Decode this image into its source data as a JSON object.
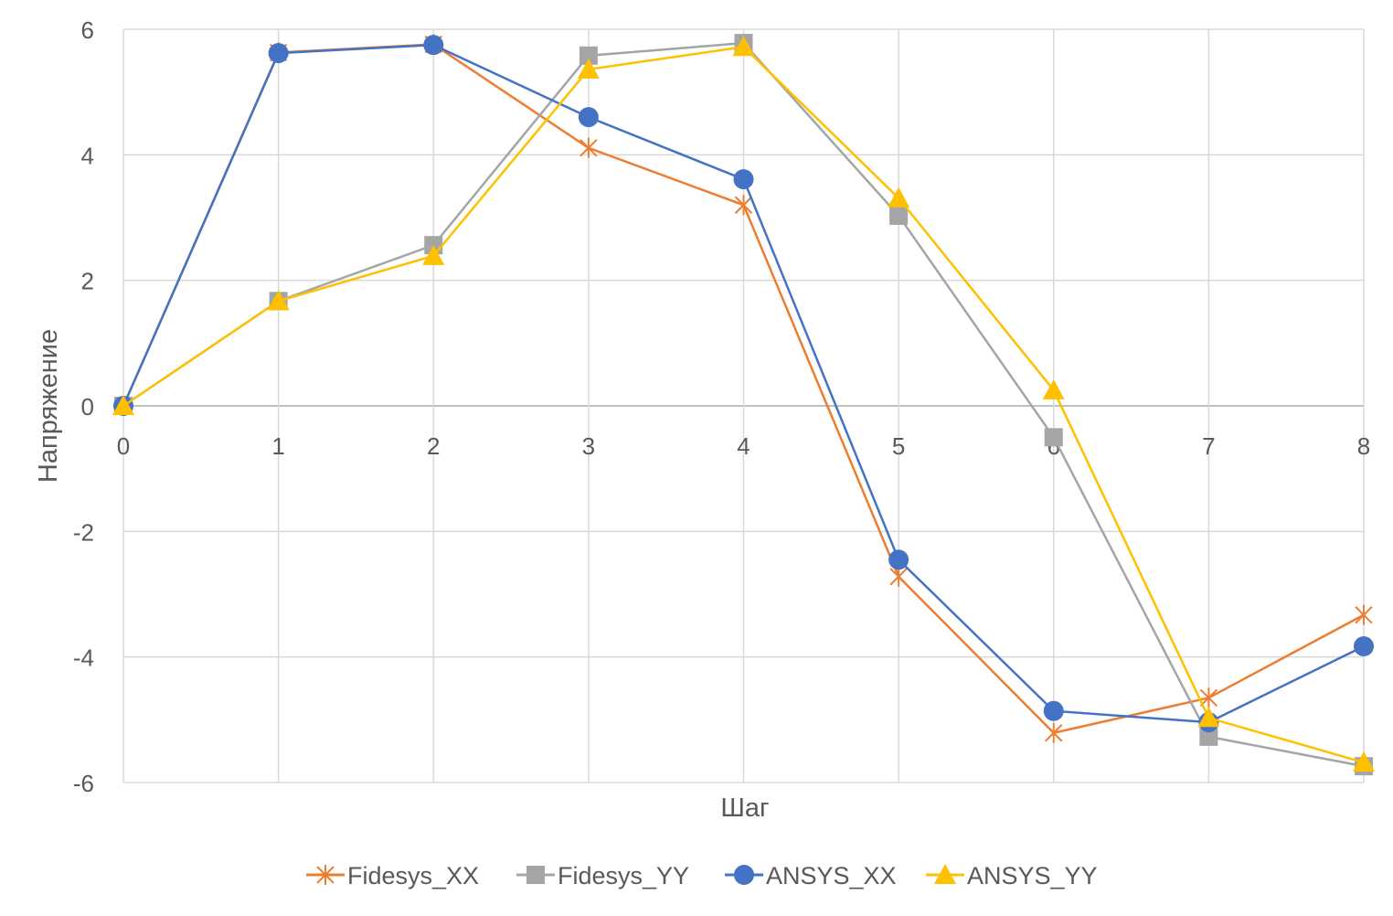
{
  "chart_data": {
    "type": "line",
    "title": "",
    "xlabel": "Шаг",
    "ylabel": "Напряжение",
    "x": [
      0,
      1,
      2,
      3,
      4,
      5,
      6,
      7,
      8
    ],
    "xlim": [
      0,
      8
    ],
    "ylim": [
      -6,
      6
    ],
    "yticks": [
      -6,
      -4,
      -2,
      0,
      2,
      4,
      6
    ],
    "xticks": [
      0,
      1,
      2,
      3,
      4,
      5,
      6,
      7,
      8
    ],
    "grid": true,
    "legend_position": "bottom",
    "series": [
      {
        "name": "Fidesys_XX",
        "color": "#ED7D31",
        "marker": "star",
        "values": [
          0,
          5.63,
          5.76,
          4.11,
          3.2,
          -2.72,
          -5.21,
          -4.65,
          -3.33
        ]
      },
      {
        "name": "Fidesys_YY",
        "color": "#A5A5A5",
        "marker": "square",
        "values": [
          0,
          1.67,
          2.56,
          5.58,
          5.78,
          3.03,
          -0.5,
          -5.27,
          -5.74
        ]
      },
      {
        "name": "ANSYS_XX",
        "color": "#4472C4",
        "marker": "circle",
        "values": [
          0,
          5.62,
          5.75,
          4.6,
          3.61,
          -2.45,
          -4.86,
          -5.04,
          -3.83
        ]
      },
      {
        "name": "ANSYS_YY",
        "color": "#FFC000",
        "marker": "triangle",
        "values": [
          0,
          1.67,
          2.39,
          5.36,
          5.72,
          3.31,
          0.25,
          -4.97,
          -5.68
        ]
      }
    ]
  }
}
